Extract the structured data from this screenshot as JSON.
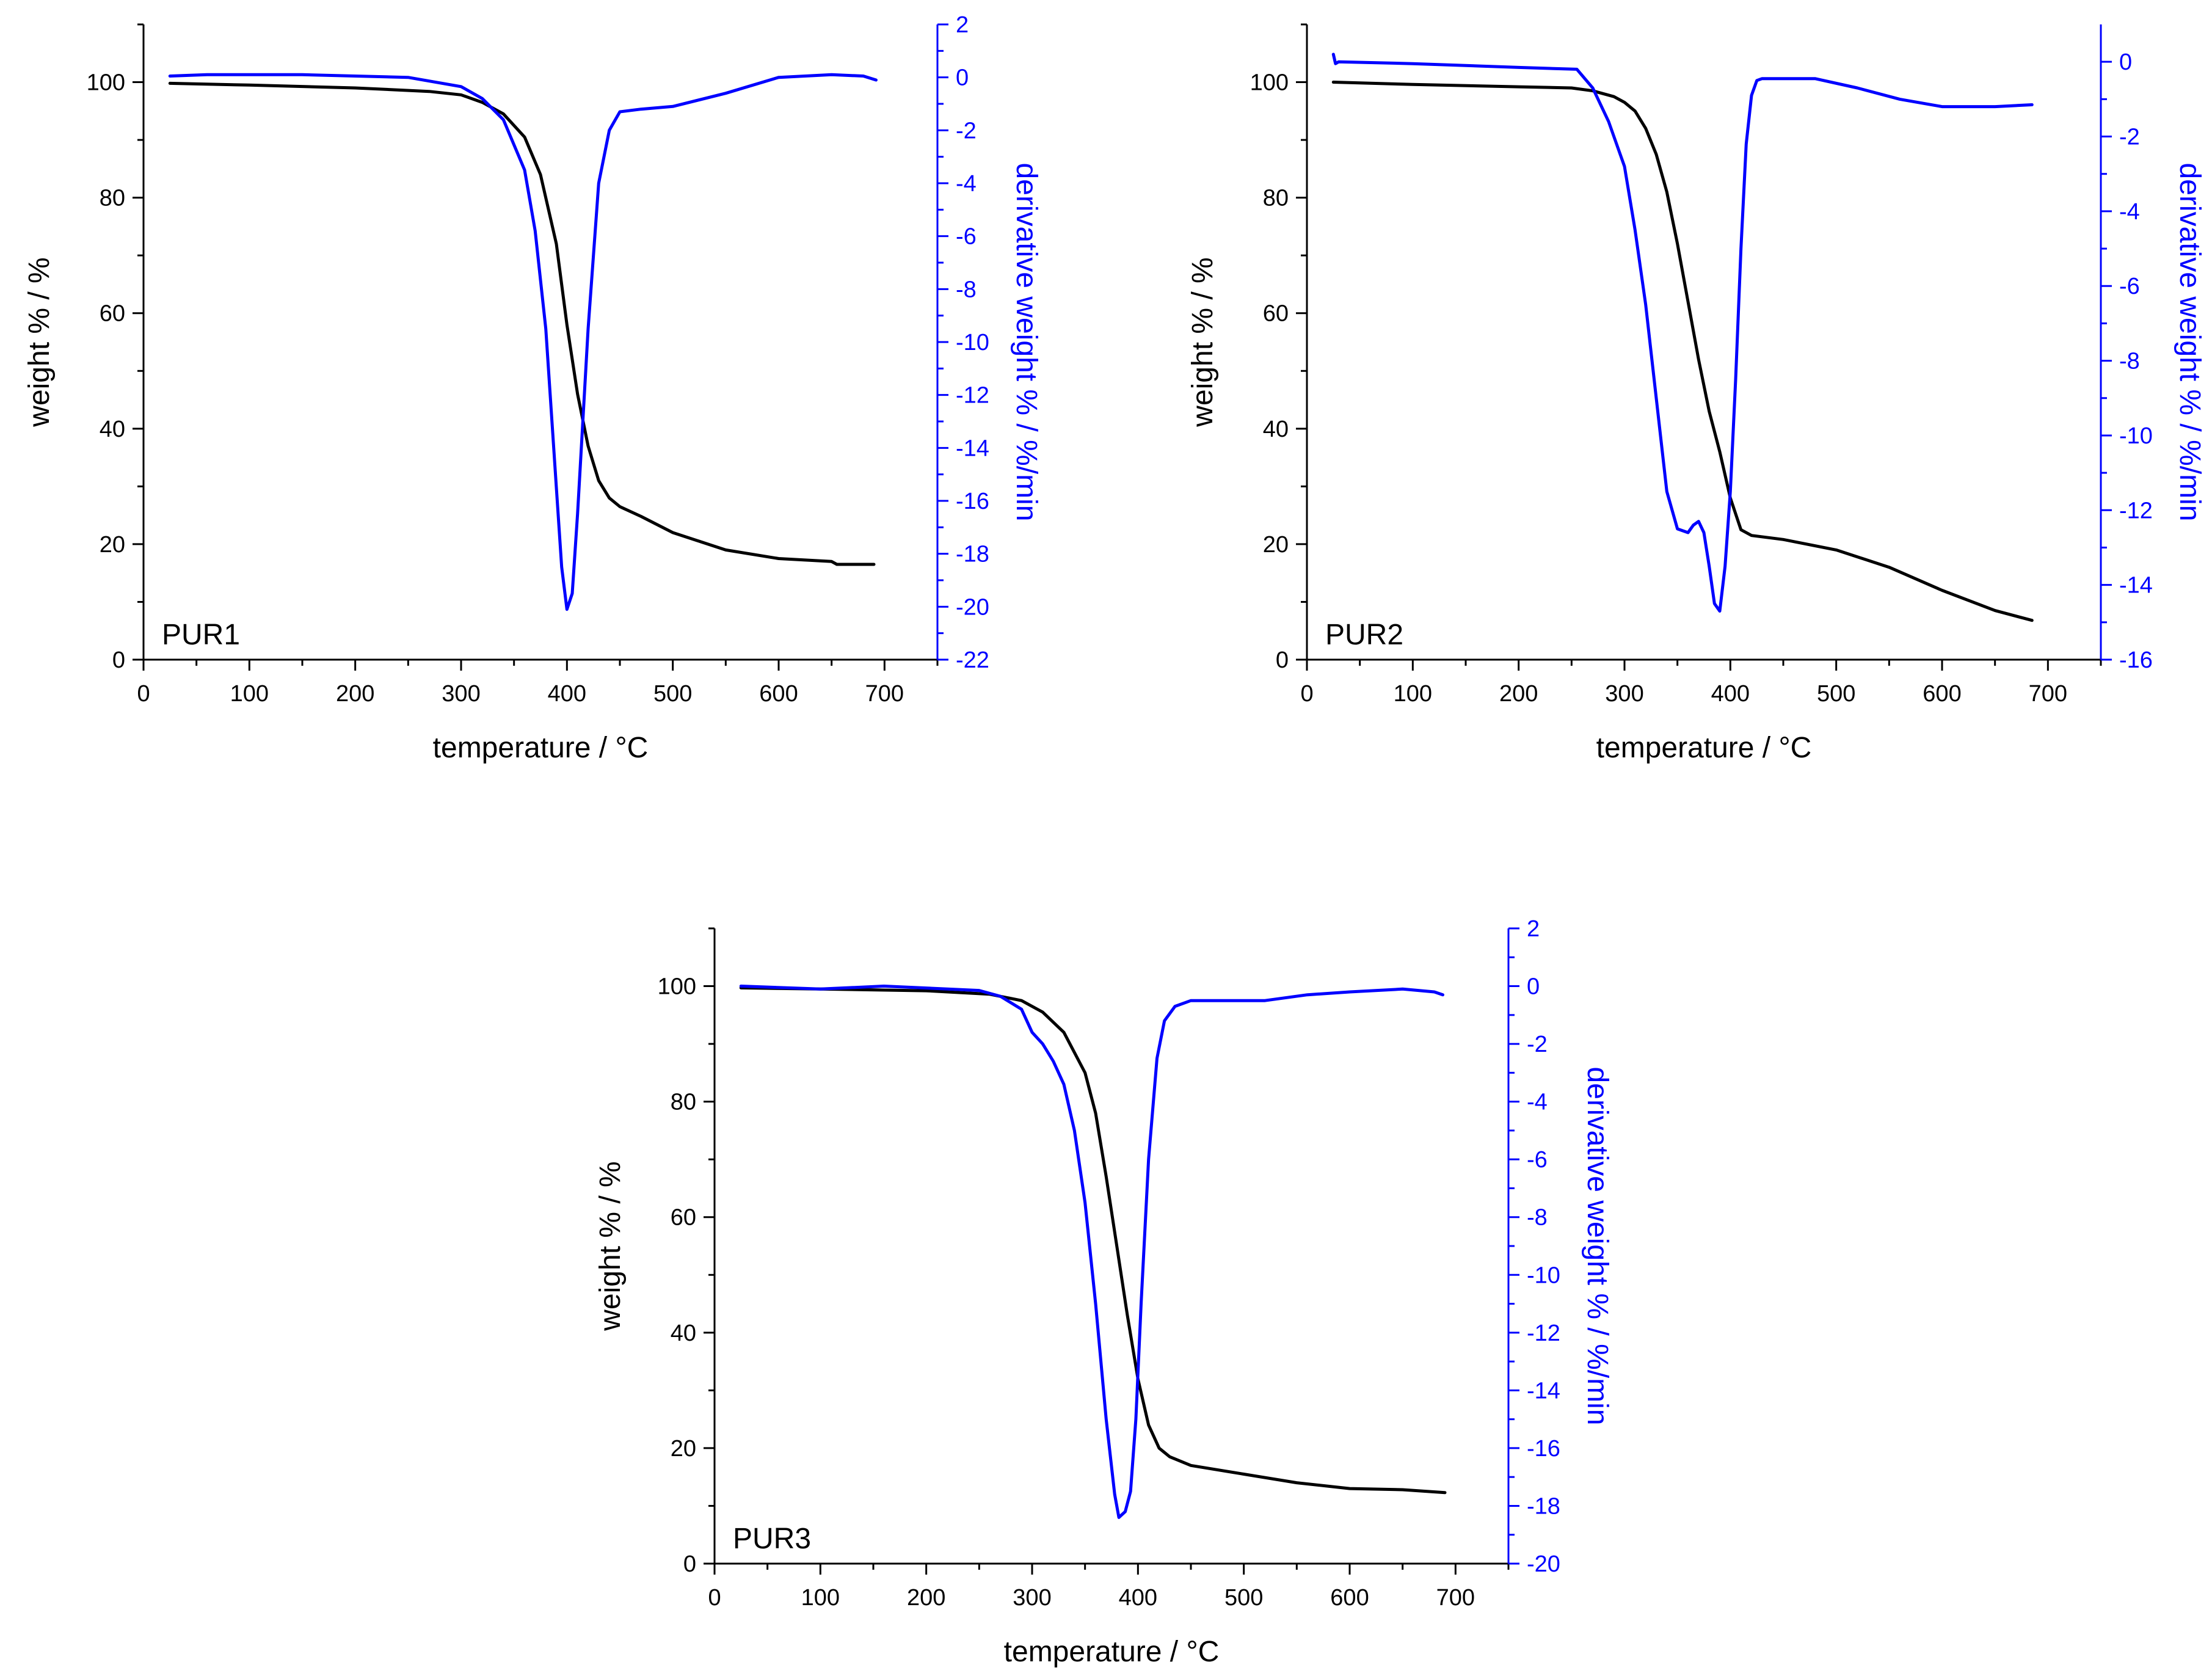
{
  "figure": {
    "panel_count": 3
  },
  "colors": {
    "weight": "#000000",
    "derivative": "#0000ff",
    "axis": "#000000"
  },
  "chart_data": [
    {
      "type": "line",
      "panel": "PUR1",
      "label": "PUR1",
      "xlabel": "temperature / °C",
      "ylabel": "weight % / %",
      "y2label": "derivative weight % / %/min",
      "xlim": [
        0,
        750
      ],
      "ylim": [
        0,
        110
      ],
      "y2lim": [
        -22,
        2
      ],
      "xticks": [
        0,
        100,
        200,
        300,
        400,
        500,
        600,
        700
      ],
      "yticks": [
        0,
        20,
        40,
        60,
        80,
        100
      ],
      "y2ticks": [
        2,
        0,
        -2,
        -4,
        -6,
        -8,
        -10,
        -12,
        -14,
        -16,
        -18,
        -20,
        -22
      ],
      "series": [
        {
          "name": "weight",
          "axis": "left",
          "color": "#000000",
          "x": [
            25,
            100,
            200,
            270,
            300,
            320,
            340,
            360,
            375,
            390,
            400,
            410,
            420,
            430,
            440,
            450,
            470,
            500,
            550,
            600,
            650,
            655,
            690
          ],
          "y": [
            99.8,
            99.5,
            99.0,
            98.4,
            97.8,
            96.5,
            94.5,
            90.5,
            84,
            72,
            58,
            46,
            37,
            31,
            28,
            26.5,
            24.8,
            22,
            19,
            17.5,
            17,
            16.5,
            16.5
          ]
        },
        {
          "name": "derivative weight",
          "axis": "right",
          "color": "#0000ff",
          "x": [
            25,
            60,
            150,
            250,
            300,
            320,
            340,
            360,
            370,
            380,
            390,
            395,
            400,
            405,
            410,
            420,
            430,
            440,
            450,
            470,
            500,
            550,
            600,
            650,
            680,
            692
          ],
          "y": [
            0.05,
            0.1,
            0.1,
            0,
            -0.35,
            -0.8,
            -1.6,
            -3.5,
            -5.8,
            -9.5,
            -15.5,
            -18.5,
            -20.1,
            -19.5,
            -16.5,
            -9.5,
            -4,
            -2,
            -1.3,
            -1.2,
            -1.1,
            -0.6,
            0,
            0.1,
            0.05,
            -0.1
          ]
        }
      ]
    },
    {
      "type": "line",
      "panel": "PUR2",
      "label": "PUR2",
      "xlabel": "temperature / °C",
      "ylabel": "weight % / %",
      "y2label": "derivative weight % / %/min",
      "xlim": [
        0,
        750
      ],
      "ylim": [
        0,
        110
      ],
      "y2lim": [
        -16,
        1
      ],
      "xticks": [
        0,
        100,
        200,
        300,
        400,
        500,
        600,
        700
      ],
      "yticks": [
        0,
        20,
        40,
        60,
        80,
        100
      ],
      "y2ticks": [
        0,
        -2,
        -4,
        -6,
        -8,
        -10,
        -12,
        -14,
        -16
      ],
      "series": [
        {
          "name": "weight",
          "axis": "left",
          "color": "#000000",
          "x": [
            25,
            100,
            200,
            250,
            270,
            290,
            300,
            310,
            320,
            330,
            340,
            350,
            360,
            370,
            380,
            390,
            400,
            410,
            420,
            450,
            500,
            550,
            600,
            650,
            685
          ],
          "y": [
            100,
            99.6,
            99.2,
            99,
            98.5,
            97.5,
            96.5,
            95,
            92,
            87.5,
            81,
            72,
            62,
            52,
            43,
            36,
            28,
            22.5,
            21.5,
            20.8,
            19,
            16,
            12,
            8.5,
            6.8
          ],
          "note": "approximate shape; descending approx linearly from 100 to 20 between 300 and 410 °C"
        },
        {
          "name": "derivative weight",
          "axis": "right",
          "color": "#0000ff",
          "x": [
            25,
            27,
            30,
            100,
            200,
            255,
            270,
            285,
            300,
            310,
            320,
            330,
            340,
            350,
            360,
            365,
            370,
            375,
            380,
            385,
            390,
            395,
            400,
            405,
            410,
            415,
            420,
            425,
            430,
            440,
            450,
            480,
            520,
            560,
            600,
            650,
            685
          ],
          "y": [
            0.2,
            -0.05,
            0,
            -0.05,
            -0.15,
            -0.2,
            -0.7,
            -1.6,
            -2.8,
            -4.5,
            -6.5,
            -9,
            -11.5,
            -12.5,
            -12.6,
            -12.4,
            -12.3,
            -12.6,
            -13.5,
            -14.5,
            -14.7,
            -13.5,
            -11.5,
            -8.5,
            -5,
            -2.2,
            -0.9,
            -0.5,
            -0.45,
            -0.45,
            -0.45,
            -0.45,
            -0.7,
            -1.0,
            -1.2,
            -1.2,
            -1.15
          ]
        }
      ]
    },
    {
      "type": "line",
      "panel": "PUR3",
      "label": "PUR3",
      "xlabel": "temperature / °C",
      "ylabel": "weight % / %",
      "y2label": "derivative weight % / %/min",
      "xlim": [
        0,
        750
      ],
      "ylim": [
        0,
        110
      ],
      "y2lim": [
        -20,
        2
      ],
      "xticks": [
        0,
        100,
        200,
        300,
        400,
        500,
        600,
        700
      ],
      "yticks": [
        0,
        20,
        40,
        60,
        80,
        100
      ],
      "y2ticks": [
        2,
        0,
        -2,
        -4,
        -6,
        -8,
        -10,
        -12,
        -14,
        -16,
        -18,
        -20
      ],
      "series": [
        {
          "name": "weight",
          "axis": "left",
          "color": "#000000",
          "x": [
            25,
            100,
            200,
            260,
            290,
            310,
            330,
            350,
            360,
            370,
            380,
            390,
            400,
            410,
            420,
            430,
            450,
            500,
            550,
            600,
            650,
            690
          ],
          "y": [
            99.7,
            99.5,
            99.2,
            98.6,
            97.5,
            95.5,
            92,
            85,
            78,
            67,
            55,
            43,
            32,
            24,
            20,
            18.5,
            17,
            15.5,
            14,
            13,
            12.8,
            12.3
          ]
        },
        {
          "name": "derivative weight",
          "axis": "right",
          "color": "#0000ff",
          "x": [
            25,
            100,
            160,
            250,
            270,
            290,
            300,
            310,
            320,
            330,
            340,
            350,
            360,
            370,
            378,
            382,
            388,
            393,
            398,
            403,
            410,
            418,
            425,
            435,
            450,
            480,
            520,
            560,
            600,
            650,
            680,
            688
          ],
          "y": [
            0,
            -0.1,
            0,
            -0.15,
            -0.35,
            -0.8,
            -1.6,
            -2.0,
            -2.6,
            -3.4,
            -5,
            -7.5,
            -11,
            -15,
            -17.6,
            -18.4,
            -18.2,
            -17.5,
            -15,
            -11,
            -6,
            -2.5,
            -1.2,
            -0.7,
            -0.5,
            -0.5,
            -0.5,
            -0.3,
            -0.2,
            -0.1,
            -0.2,
            -0.3
          ]
        }
      ]
    }
  ]
}
